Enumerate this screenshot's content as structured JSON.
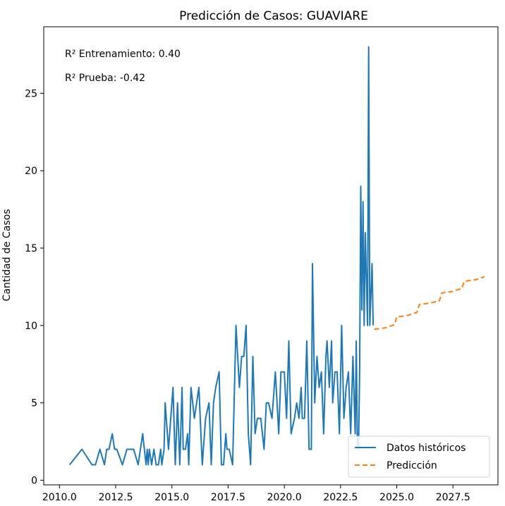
{
  "chart_data": {
    "type": "line",
    "title": "Predicción de Casos: GUAVIARE",
    "xlabel": "",
    "ylabel": "Cantidad de Casos",
    "xlim": [
      2009.3,
      2029.5
    ],
    "ylim": [
      -0.3,
      29.3
    ],
    "x_ticks": [
      2010.0,
      2012.5,
      2015.0,
      2017.5,
      2020.0,
      2022.5,
      2025.0,
      2027.5
    ],
    "x_tick_labels": [
      "2010.0",
      "2012.5",
      "2015.0",
      "2017.5",
      "2020.0",
      "2022.5",
      "2025.0",
      "2027.5"
    ],
    "y_ticks": [
      0,
      5,
      10,
      15,
      20,
      25
    ],
    "y_tick_labels": [
      "0",
      "5",
      "10",
      "15",
      "20",
      "25"
    ],
    "grid": false,
    "legend_position": "lower-right",
    "annotations": [
      "R² Entrenamiento: 0.40",
      "R² Prueba: -0.42"
    ],
    "series": [
      {
        "name": "Datos históricos",
        "color": "#1f77b4",
        "style": "solid",
        "x": [
          2010.45,
          2011.0,
          2011.45,
          2011.6,
          2011.8,
          2012.0,
          2012.1,
          2012.2,
          2012.35,
          2012.45,
          2012.55,
          2012.8,
          2013.0,
          2013.3,
          2013.5,
          2013.7,
          2013.85,
          2013.9,
          2013.95,
          2014.0,
          2014.1,
          2014.2,
          2014.3,
          2014.4,
          2014.5,
          2014.55,
          2014.65,
          2014.7,
          2014.8,
          2014.85,
          2015.05,
          2015.15,
          2015.25,
          2015.35,
          2015.45,
          2015.5,
          2015.55,
          2015.6,
          2015.7,
          2015.75,
          2015.85,
          2016.0,
          2016.2,
          2016.35,
          2016.5,
          2016.65,
          2016.75,
          2016.85,
          2016.95,
          2017.1,
          2017.2,
          2017.3,
          2017.4,
          2017.45,
          2017.55,
          2017.7,
          2017.85,
          2018.0,
          2018.1,
          2018.2,
          2018.3,
          2018.4,
          2018.5,
          2018.6,
          2018.7,
          2018.8,
          2018.95,
          2019.1,
          2019.2,
          2019.3,
          2019.45,
          2019.6,
          2019.75,
          2019.85,
          2020.0,
          2020.1,
          2020.2,
          2020.3,
          2020.45,
          2020.55,
          2020.65,
          2020.75,
          2020.8,
          2020.9,
          2021.0,
          2021.1,
          2021.2,
          2021.25,
          2021.35,
          2021.45,
          2021.55,
          2021.65,
          2021.75,
          2021.85,
          2021.9,
          2022.0,
          2022.1,
          2022.15,
          2022.25,
          2022.35,
          2022.45,
          2022.55,
          2022.65,
          2022.75,
          2022.85,
          2022.95,
          2023.05,
          2023.15,
          2023.2,
          2023.25,
          2023.3,
          2023.35,
          2023.4,
          2023.45,
          2023.5,
          2023.55,
          2023.6,
          2023.7,
          2023.75,
          2023.8,
          2023.9,
          2023.95
        ],
        "y": [
          1,
          2,
          1,
          1,
          2,
          1,
          2,
          2,
          3,
          2,
          2,
          1,
          2,
          2,
          1,
          3,
          1,
          2,
          1,
          2,
          1,
          2,
          1,
          1,
          2,
          1,
          2,
          5,
          3,
          2,
          6,
          1,
          5,
          1,
          6,
          2,
          2,
          2,
          3,
          1,
          6,
          4,
          6,
          1,
          4,
          5,
          1,
          5,
          6,
          7,
          1,
          1,
          3,
          2,
          2,
          1,
          10,
          6,
          8,
          8,
          10,
          3,
          1,
          8,
          3,
          4,
          4,
          2,
          5,
          5,
          4,
          7,
          3,
          7,
          7,
          4,
          9,
          3,
          4,
          5,
          4,
          6,
          4,
          4,
          9,
          2,
          2,
          14,
          5,
          8,
          6,
          7,
          3,
          8,
          9,
          6,
          9,
          5,
          7,
          7,
          3,
          10,
          4,
          6,
          7,
          3,
          8,
          3,
          9,
          2,
          2,
          7,
          19,
          11,
          18,
          10,
          16,
          10,
          28,
          10,
          14,
          10
        ],
        "x_compact_note": ""
      },
      {
        "name": "Predicción",
        "color": "#ff7f0e",
        "style": "dashed",
        "x": [
          2024.0,
          2024.5,
          2024.9,
          2025.0,
          2025.5,
          2025.9,
          2026.0,
          2026.5,
          2026.9,
          2027.0,
          2027.5,
          2027.9,
          2028.0,
          2028.5,
          2028.9
        ],
        "y": [
          9.75,
          9.85,
          10.05,
          10.55,
          10.65,
          10.85,
          11.35,
          11.45,
          11.6,
          12.1,
          12.2,
          12.4,
          12.85,
          12.95,
          13.15
        ]
      }
    ]
  }
}
